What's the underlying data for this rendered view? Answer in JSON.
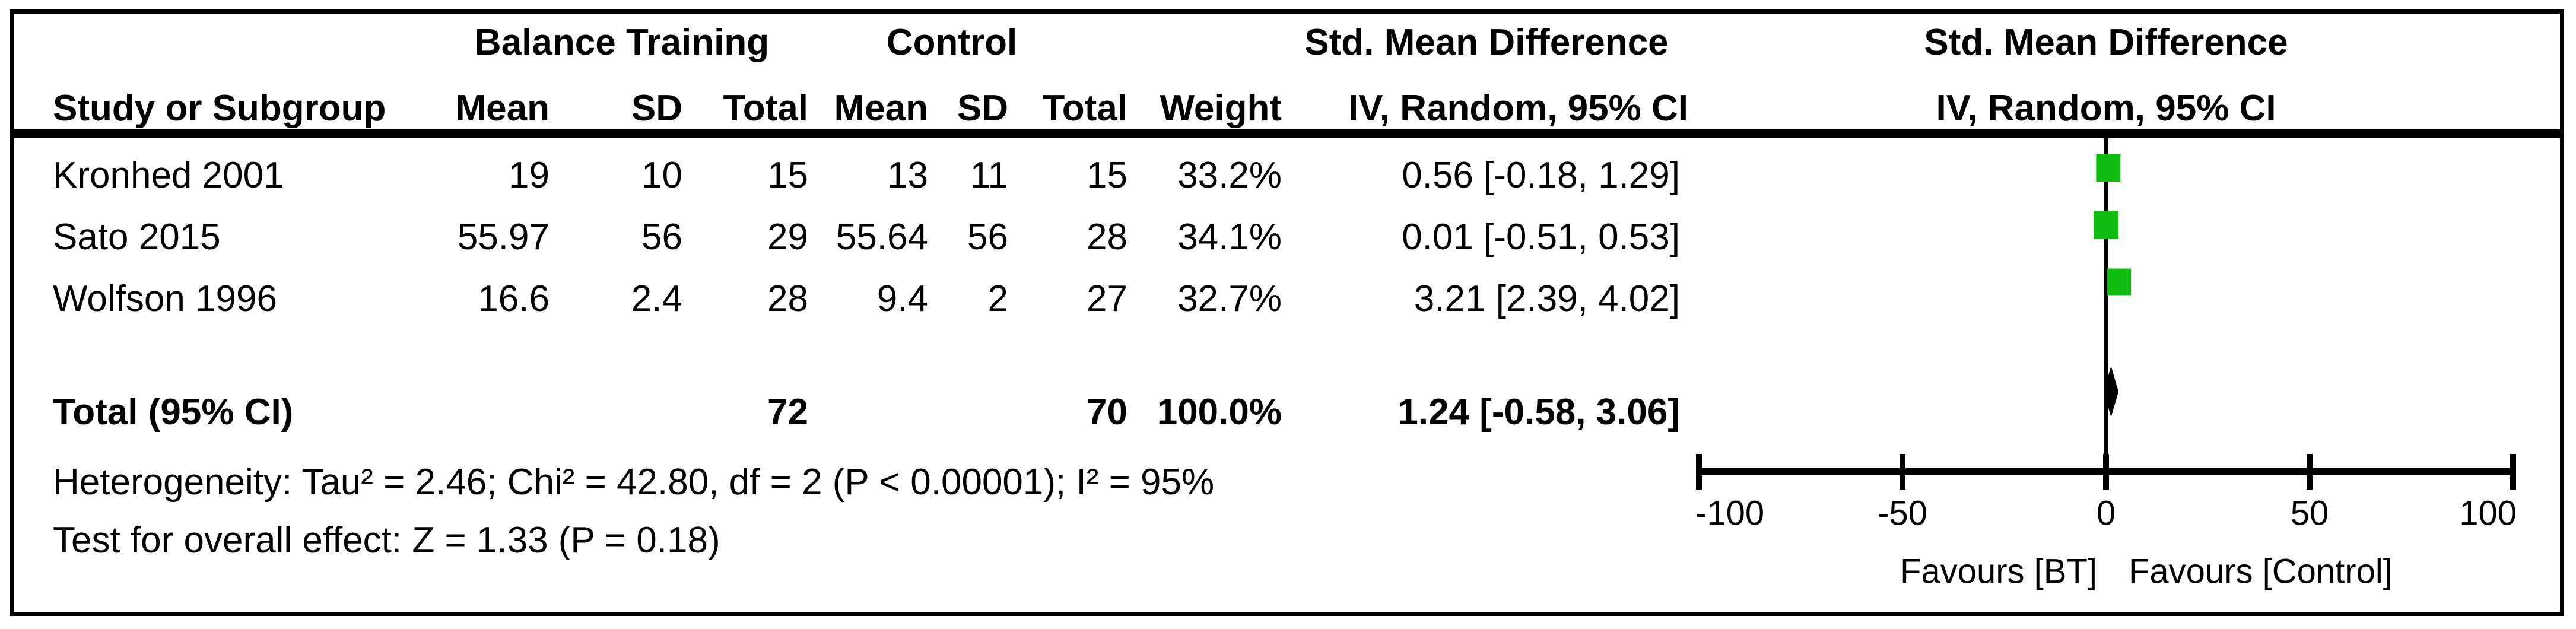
{
  "table": {
    "group_headers": {
      "balance_training": "Balance Training",
      "control": "Control",
      "smd_table": "Std. Mean Difference",
      "smd_plot": "Std. Mean Difference"
    },
    "col_headers": {
      "study": "Study or Subgroup",
      "mean_bt": "Mean",
      "sd_bt": "SD",
      "total_bt": "Total",
      "mean_c": "Mean",
      "sd_c": "SD",
      "total_c": "Total",
      "weight": "Weight",
      "iv_table": "IV, Random, 95% CI",
      "iv_plot": "IV, Random, 95% CI"
    },
    "rows": [
      {
        "study": "Kronhed 2001",
        "mean_bt": "19",
        "sd_bt": "10",
        "total_bt": "15",
        "mean_c": "13",
        "sd_c": "11",
        "total_c": "15",
        "weight": "33.2%",
        "smd_ci": "0.56 [-0.18, 1.29]"
      },
      {
        "study": "Sato 2015",
        "mean_bt": "55.97",
        "sd_bt": "56",
        "total_bt": "29",
        "mean_c": "55.64",
        "sd_c": "56",
        "total_c": "28",
        "weight": "34.1%",
        "smd_ci": "0.01 [-0.51, 0.53]"
      },
      {
        "study": "Wolfson 1996",
        "mean_bt": "16.6",
        "sd_bt": "2.4",
        "total_bt": "28",
        "mean_c": "9.4",
        "sd_c": "2",
        "total_c": "27",
        "weight": "32.7%",
        "smd_ci": "3.21 [2.39, 4.02]"
      }
    ],
    "total_row": {
      "label": "Total (95% CI)",
      "total_bt": "72",
      "total_c": "70",
      "weight": "100.0%",
      "smd_ci": "1.24 [-0.58, 3.06]"
    },
    "footnotes": {
      "heterogeneity": "Heterogeneity: Tau² = 2.46; Chi² = 42.80, df = 2 (P < 0.00001); I² = 95%",
      "overall_effect": "Test for overall effect: Z = 1.33 (P = 0.18)"
    }
  },
  "chart_data": {
    "type": "scatter",
    "variant": "forest_plot",
    "title": "Std. Mean Difference",
    "effect_measure": "IV, Random, 95% CI",
    "studies": [
      {
        "name": "Kronhed 2001",
        "smd": 0.56,
        "ci_low": -0.18,
        "ci_high": 1.29,
        "weight_pct": 33.2
      },
      {
        "name": "Sato 2015",
        "smd": 0.01,
        "ci_low": -0.51,
        "ci_high": 0.53,
        "weight_pct": 34.1
      },
      {
        "name": "Wolfson 1996",
        "smd": 3.21,
        "ci_low": 2.39,
        "ci_high": 4.02,
        "weight_pct": 32.7
      }
    ],
    "total": {
      "label": "Total (95% CI)",
      "smd": 1.24,
      "ci_low": -0.58,
      "ci_high": 3.06,
      "weight_pct": 100.0
    },
    "axis": {
      "min": -100,
      "max": 100,
      "ticks": [
        -100,
        -50,
        0,
        50,
        100
      ],
      "tick_labels": [
        "-100",
        "-50",
        "0",
        "50",
        "100"
      ]
    },
    "xlabel_left": "Favours [BT]",
    "xlabel_right": "Favours [Control]",
    "marker_color": "#0fbc0f",
    "diamond_color": "#000000",
    "line_color": "#000000"
  }
}
